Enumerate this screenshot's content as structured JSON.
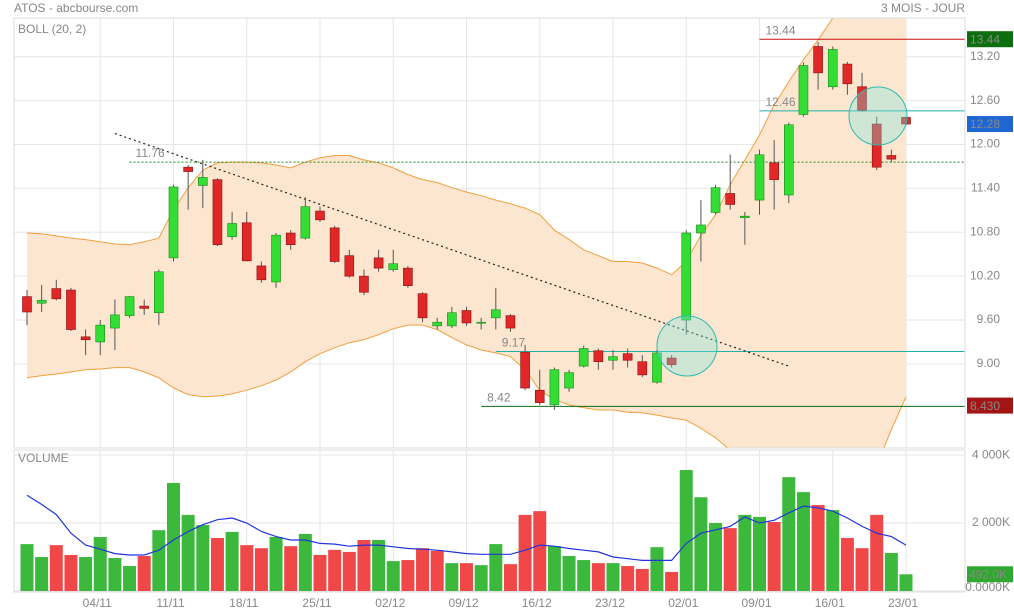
{
  "chart_data": {
    "type": "candlestick",
    "title": "ATOS - abcbourse.com",
    "period": "3 MOIS - JOUR",
    "categories": [
      null,
      null,
      null,
      null,
      null,
      "04/11",
      null,
      null,
      null,
      null,
      "11/11",
      null,
      null,
      null,
      null,
      "18/11",
      null,
      null,
      null,
      null,
      "25/11",
      null,
      null,
      null,
      null,
      "02/12",
      null,
      null,
      null,
      null,
      "09/12",
      null,
      null,
      null,
      null,
      "16/12",
      null,
      null,
      null,
      null,
      "23/12",
      null,
      null,
      null,
      null,
      "02/01",
      null,
      null,
      null,
      null,
      "09/01",
      null,
      null,
      null,
      null,
      "16/01",
      null,
      null,
      null,
      null,
      "23/01"
    ],
    "open": [
      9.92,
      9.83,
      10.03,
      10.01,
      9.37,
      9.3,
      9.49,
      9.66,
      9.79,
      9.7,
      10.45,
      11.69,
      11.44,
      11.52,
      10.74,
      10.93,
      10.34,
      10.12,
      10.79,
      10.72,
      11.09,
      10.86,
      10.48,
      10.2,
      10.45,
      10.29,
      10.31,
      9.96,
      9.52,
      9.52,
      9.73,
      9.56,
      9.63,
      9.66,
      9.16,
      8.64,
      8.44,
      8.67,
      8.97,
      9.18,
      9.05,
      9.14,
      9.03,
      8.75,
      9.08,
      9.6,
      10.79,
      11.07,
      11.33,
      11.0,
      11.24,
      11.75,
      11.31,
      12.41,
      13.34,
      12.79,
      13.1,
      12.79,
      12.28,
      11.85,
      12.37
    ],
    "high": [
      10.01,
      10.08,
      10.15,
      10.04,
      9.47,
      9.6,
      9.88,
      9.93,
      9.88,
      10.29,
      11.45,
      11.72,
      11.79,
      11.54,
      11.08,
      11.08,
      10.4,
      10.79,
      10.83,
      11.28,
      11.15,
      10.89,
      10.56,
      10.29,
      10.56,
      10.56,
      10.34,
      9.98,
      9.63,
      9.78,
      9.78,
      9.63,
      10.04,
      9.68,
      9.26,
      8.92,
      8.95,
      8.92,
      9.25,
      9.21,
      9.19,
      9.21,
      9.12,
      9.19,
      9.12,
      10.83,
      11.24,
      11.45,
      11.86,
      11.08,
      11.93,
      12.06,
      12.3,
      13.12,
      13.4,
      13.34,
      13.13,
      12.98,
      12.38,
      11.93,
      12.38
    ],
    "low": [
      9.53,
      9.71,
      9.87,
      9.45,
      9.12,
      9.12,
      9.19,
      9.63,
      9.67,
      9.53,
      10.4,
      11.11,
      11.13,
      10.61,
      10.7,
      10.4,
      10.11,
      10.04,
      10.56,
      10.7,
      10.94,
      10.38,
      10.18,
      9.94,
      10.26,
      10.26,
      10.04,
      9.57,
      9.47,
      9.49,
      9.52,
      9.47,
      9.47,
      9.44,
      8.64,
      8.44,
      8.37,
      8.62,
      8.95,
      8.92,
      8.92,
      8.95,
      8.82,
      8.73,
      8.95,
      9.4,
      10.4,
      11.04,
      11.11,
      10.63,
      11.04,
      11.11,
      11.2,
      12.38,
      12.75,
      12.75,
      12.68,
      12.45,
      11.65,
      11.76,
      12.26
    ],
    "close": [
      9.71,
      9.87,
      9.89,
      9.47,
      9.33,
      9.53,
      9.67,
      9.92,
      9.76,
      10.26,
      11.42,
      11.63,
      11.55,
      10.63,
      10.92,
      10.41,
      10.15,
      10.76,
      10.63,
      11.15,
      10.97,
      10.4,
      10.2,
      9.98,
      10.31,
      10.37,
      10.07,
      9.63,
      9.57,
      9.7,
      9.56,
      9.57,
      9.74,
      9.49,
      8.67,
      8.47,
      8.92,
      8.88,
      9.21,
      9.03,
      9.1,
      9.05,
      8.85,
      9.15,
      8.99,
      10.79,
      10.9,
      11.41,
      11.18,
      11.02,
      11.86,
      11.52,
      12.27,
      13.08,
      12.98,
      13.3,
      12.83,
      12.47,
      11.69,
      11.8,
      12.28
    ],
    "up_color": "#33dd33",
    "down_color": "#e02828",
    "ylim": [
      7.85,
      13.73
    ],
    "yticks": [
      {
        "value": 9,
        "label": "9.00"
      },
      {
        "value": 9.6,
        "label": "9.60"
      },
      {
        "value": 10.2,
        "label": "10.20"
      },
      {
        "value": 10.8,
        "label": "10.80"
      },
      {
        "value": 11.4,
        "label": "11.40"
      },
      {
        "value": 12,
        "label": "12.00"
      },
      {
        "value": 12.6,
        "label": "12.60"
      },
      {
        "value": 13.2,
        "label": "13.20"
      }
    ],
    "grid": true,
    "bollinger": {
      "name": "BOLL (20, 2)",
      "color": "#f0a040",
      "fill": "#fde6cf",
      "upper": [
        10.79,
        10.78,
        10.75,
        10.72,
        10.7,
        10.67,
        10.64,
        10.63,
        10.67,
        10.72,
        11.11,
        11.41,
        11.65,
        11.75,
        11.76,
        11.76,
        11.75,
        11.72,
        11.68,
        11.76,
        11.82,
        11.85,
        11.85,
        11.79,
        11.75,
        11.68,
        11.59,
        11.52,
        11.48,
        11.41,
        11.35,
        11.3,
        11.24,
        11.19,
        11.13,
        11.04,
        10.83,
        10.7,
        10.56,
        10.48,
        10.4,
        10.4,
        10.38,
        10.31,
        10.22,
        10.4,
        10.76,
        11.04,
        11.45,
        11.79,
        12.13,
        12.54,
        12.86,
        13.16,
        13.43,
        13.73,
        13.98,
        14.2,
        14.4,
        14.5,
        14.6
      ],
      "lower": [
        8.81,
        8.84,
        8.86,
        8.89,
        8.92,
        8.93,
        8.95,
        8.95,
        8.89,
        8.81,
        8.67,
        8.58,
        8.55,
        8.56,
        8.59,
        8.64,
        8.7,
        8.78,
        8.89,
        9.03,
        9.14,
        9.22,
        9.29,
        9.33,
        9.4,
        9.48,
        9.53,
        9.53,
        9.47,
        9.36,
        9.26,
        9.19,
        9.15,
        9.1,
        8.92,
        8.64,
        8.51,
        8.44,
        8.4,
        8.37,
        8.37,
        8.34,
        8.33,
        8.3,
        8.26,
        8.23,
        8.12,
        7.99,
        7.82,
        7.62,
        7.41,
        7.28,
        7.21,
        7.17,
        7.14,
        7.17,
        7.21,
        7.34,
        7.62,
        8.1,
        8.55
      ]
    },
    "trendline": {
      "from": {
        "index": 6,
        "value": 12.15
      },
      "to": {
        "index": 52,
        "value": 8.97
      },
      "color": "#222222"
    },
    "levels": [
      {
        "value": 13.44,
        "start": 50,
        "color": "#cc1111",
        "dash": false
      },
      {
        "value": 12.46,
        "start": 50,
        "color": "#20b0a8",
        "dash": false
      },
      {
        "value": 11.76,
        "start": 7,
        "color": "#1f8a1f",
        "dash": true
      },
      {
        "value": 9.17,
        "start": 32,
        "color": "#20b0a8",
        "dash": false
      },
      {
        "value": 8.42,
        "start": 31,
        "color": "#106a10",
        "dash": false
      }
    ],
    "price_tags": [
      {
        "value": 13.44,
        "color": "#0d6e0d"
      },
      {
        "value": 12.28,
        "color": "#1e66d0"
      },
      {
        "value": 8.43,
        "label": "8.430",
        "color": "#a31515"
      }
    ],
    "volume": {
      "name": "VOLUME",
      "values": [
        1380,
        1000,
        1350,
        1060,
        1000,
        1590,
        970,
        735,
        1030,
        1790,
        3180,
        2240,
        1940,
        1560,
        1740,
        1350,
        1260,
        1590,
        1320,
        1680,
        1060,
        1210,
        1150,
        1500,
        1500,
        880,
        910,
        1260,
        1180,
        820,
        820,
        760,
        1380,
        790,
        2240,
        2350,
        1320,
        1030,
        910,
        820,
        820,
        735,
        650,
        1290,
        560,
        3560,
        2760,
        2000,
        1850,
        2240,
        2180,
        2030,
        3350,
        2910,
        2530,
        2380,
        1560,
        1260,
        2240,
        1120,
        492
      ],
      "colors": [
        "#3cb83c",
        "#3cb83c",
        "#f04848",
        "#f04848",
        "#3cb83c",
        "#3cb83c",
        "#3cb83c",
        "#3cb83c",
        "#f04848",
        "#3cb83c",
        "#3cb83c",
        "#3cb83c",
        "#3cb83c",
        "#f04848",
        "#3cb83c",
        "#f04848",
        "#f04848",
        "#3cb83c",
        "#f04848",
        "#3cb83c",
        "#f04848",
        "#f04848",
        "#f04848",
        "#f04848",
        "#3cb83c",
        "#3cb83c",
        "#f04848",
        "#f04848",
        "#f04848",
        "#3cb83c",
        "#f04848",
        "#3cb83c",
        "#3cb83c",
        "#f04848",
        "#f04848",
        "#f04848",
        "#3cb83c",
        "#3cb83c",
        "#3cb83c",
        "#f04848",
        "#3cb83c",
        "#f04848",
        "#f04848",
        "#3cb83c",
        "#f04848",
        "#3cb83c",
        "#3cb83c",
        "#3cb83c",
        "#f04848",
        "#3cb83c",
        "#3cb83c",
        "#f04848",
        "#3cb83c",
        "#3cb83c",
        "#f04848",
        "#3cb83c",
        "#f04848",
        "#f04848",
        "#f04848",
        "#3cb83c",
        "#3cb83c"
      ],
      "ma": {
        "color": "#2233dd",
        "values": [
          2820,
          2550,
          2250,
          1700,
          1350,
          1230,
          1100,
          1060,
          1060,
          1200,
          1500,
          1750,
          1950,
          2100,
          2150,
          2000,
          1750,
          1600,
          1500,
          1500,
          1400,
          1380,
          1320,
          1350,
          1350,
          1300,
          1250,
          1230,
          1200,
          1150,
          1100,
          1080,
          1080,
          1080,
          1200,
          1350,
          1320,
          1250,
          1200,
          1150,
          1000,
          950,
          900,
          900,
          900,
          1400,
          1700,
          1800,
          1900,
          2180,
          2000,
          2080,
          2300,
          2500,
          2450,
          2350,
          2150,
          1900,
          1700,
          1600,
          1350
        ]
      },
      "ylim": [
        0,
        4150
      ],
      "yticks": [
        {
          "value": 0,
          "label": "0.0000K"
        },
        {
          "value": 2000,
          "label": "2 000K"
        },
        {
          "value": 4000,
          "label": "4 000K"
        }
      ],
      "tag": {
        "value": 492,
        "label": "492.0K",
        "color": "#2fa82f"
      }
    }
  }
}
